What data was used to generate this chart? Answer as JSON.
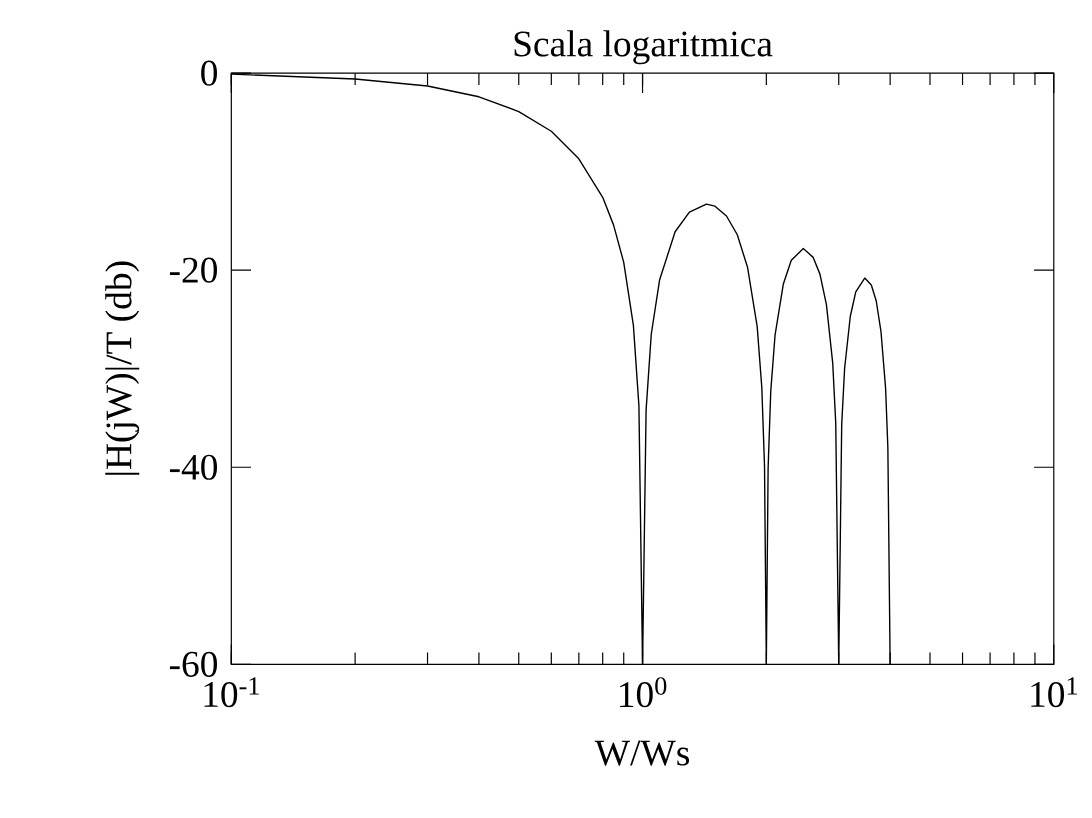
{
  "chart_data": {
    "type": "line",
    "title": "Scala logaritmica",
    "xlabel": "W/Ws",
    "ylabel": "|H(jW)|/T  (db)",
    "log": "x",
    "xlim": [
      0.1,
      10
    ],
    "ylim": [
      -60,
      0
    ],
    "xticks": [
      {
        "value": 0.1,
        "label": "10$^{-1}$"
      },
      {
        "value": 1,
        "label": "10$^{0}$"
      },
      {
        "value": 10,
        "label": "10$^{1}$"
      }
    ],
    "yticks": [
      0,
      -20,
      -40,
      -60
    ],
    "grid": false,
    "marker": "none",
    "line_style": "solid",
    "series": [
      {
        "color": "#000000",
        "x": [
          0.1,
          0.2,
          0.3,
          0.4,
          0.5,
          0.6,
          0.7,
          0.8,
          0.85,
          0.9,
          0.95,
          0.98,
          1.0,
          1.02,
          1.05,
          1.1,
          1.2,
          1.3,
          1.43,
          1.5,
          1.6,
          1.7,
          1.8,
          1.9,
          1.95,
          1.98,
          2.0,
          2.02,
          2.05,
          2.1,
          2.2,
          2.3,
          2.46,
          2.6,
          2.7,
          2.8,
          2.9,
          2.95,
          3.0,
          3.05,
          3.1,
          3.2,
          3.3,
          3.47,
          3.6,
          3.7,
          3.8,
          3.9,
          3.95,
          4.0
        ],
        "values": [
          -0.1,
          -0.6,
          -1.3,
          -2.4,
          -3.9,
          -5.9,
          -8.7,
          -12.6,
          -15.4,
          -19.2,
          -25.6,
          -33.8,
          -60,
          -34.2,
          -26.5,
          -21,
          -16.1,
          -14.1,
          -13.3,
          -13.5,
          -14.5,
          -16.4,
          -19.7,
          -25.7,
          -31.9,
          -39.9,
          -60,
          -40.1,
          -32.3,
          -26.6,
          -21.4,
          -19,
          -17.8,
          -18.7,
          -20.4,
          -23.5,
          -29.4,
          -35.5,
          -60,
          -35.7,
          -30,
          -24.7,
          -22.2,
          -20.8,
          -21.5,
          -23.1,
          -26.2,
          -32,
          -38,
          -60
        ]
      }
    ]
  }
}
